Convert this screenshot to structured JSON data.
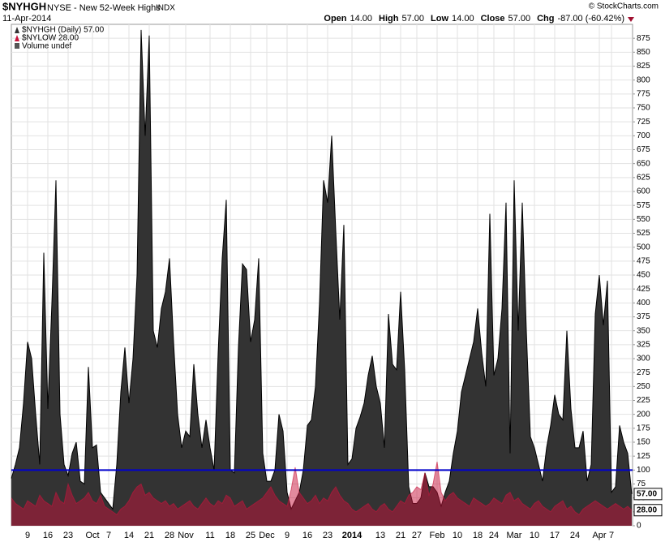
{
  "header": {
    "symbol": "$NYHGH",
    "name": "NYSE - New 52-Week Highs",
    "exchange": "INDX",
    "date": "11-Apr-2014",
    "copyright": "© StockCharts.com",
    "quote": [
      {
        "label": "Open",
        "value": "14.00"
      },
      {
        "label": "High",
        "value": "57.00"
      },
      {
        "label": "Low",
        "value": "14.00"
      },
      {
        "label": "Close",
        "value": "57.00"
      },
      {
        "label": "Chg",
        "value": "-87.00 (-60.42%)"
      }
    ]
  },
  "chart_data": {
    "type": "area",
    "ylim": [
      0,
      900
    ],
    "yticks": [
      0,
      25,
      50,
      75,
      100,
      125,
      150,
      175,
      200,
      225,
      250,
      275,
      300,
      325,
      350,
      375,
      400,
      425,
      450,
      475,
      500,
      525,
      550,
      575,
      600,
      625,
      650,
      675,
      700,
      725,
      750,
      775,
      800,
      825,
      850,
      875
    ],
    "grid": true,
    "reference_line": {
      "value": 100,
      "color": "#0000cc"
    },
    "legend_extra": "Volume undef",
    "categories": [
      null,
      null,
      null,
      null,
      "9",
      null,
      null,
      null,
      null,
      "16",
      null,
      null,
      null,
      null,
      "23",
      null,
      null,
      null,
      null,
      null,
      "Oct",
      null,
      null,
      null,
      "7",
      null,
      null,
      null,
      null,
      "14",
      null,
      null,
      null,
      null,
      "21",
      null,
      null,
      null,
      null,
      "28",
      null,
      null,
      null,
      "Nov",
      null,
      null,
      null,
      null,
      null,
      "11",
      null,
      null,
      null,
      null,
      "18",
      null,
      null,
      null,
      null,
      "25",
      null,
      null,
      null,
      "Dec",
      null,
      null,
      null,
      null,
      "9",
      null,
      null,
      null,
      null,
      "16",
      null,
      null,
      null,
      null,
      "23",
      null,
      null,
      null,
      null,
      null,
      "2014",
      null,
      null,
      null,
      null,
      null,
      null,
      "13",
      null,
      null,
      null,
      null,
      "21",
      null,
      null,
      null,
      "27",
      null,
      null,
      null,
      null,
      "Feb",
      null,
      null,
      null,
      null,
      "10",
      null,
      null,
      null,
      null,
      "18",
      null,
      null,
      null,
      "24",
      null,
      null,
      null,
      null,
      "Mar",
      null,
      null,
      null,
      null,
      "10",
      null,
      null,
      null,
      null,
      "17",
      null,
      null,
      null,
      null,
      "24",
      null,
      null,
      null,
      null,
      null,
      "Apr",
      null,
      null,
      "7",
      null,
      null,
      null,
      null,
      null
    ],
    "series": [
      {
        "name": "$NYHGH (Daily) 57.00",
        "color": "#333333",
        "last_label": "57.00",
        "values": [
          85,
          110,
          140,
          220,
          330,
          300,
          200,
          110,
          490,
          210,
          400,
          620,
          200,
          110,
          90,
          130,
          150,
          80,
          75,
          285,
          140,
          145,
          60,
          50,
          40,
          30,
          110,
          240,
          320,
          220,
          300,
          450,
          890,
          700,
          880,
          350,
          320,
          390,
          420,
          480,
          330,
          200,
          140,
          170,
          160,
          290,
          200,
          140,
          190,
          140,
          100,
          310,
          480,
          585,
          100,
          95,
          320,
          470,
          460,
          330,
          370,
          480,
          130,
          80,
          80,
          100,
          200,
          170,
          60,
          30,
          45,
          60,
          100,
          180,
          190,
          250,
          400,
          620,
          580,
          700,
          530,
          370,
          540,
          110,
          120,
          175,
          195,
          220,
          270,
          305,
          250,
          220,
          140,
          380,
          290,
          280,
          420,
          280,
          70,
          40,
          40,
          50,
          95,
          70,
          70,
          60,
          35,
          60,
          80,
          130,
          170,
          240,
          270,
          300,
          330,
          390,
          310,
          250,
          560,
          270,
          300,
          390,
          580,
          130,
          620,
          350,
          580,
          350,
          160,
          140,
          110,
          80,
          140,
          180,
          235,
          200,
          190,
          350,
          210,
          140,
          140,
          170,
          80,
          110,
          380,
          450,
          360,
          440,
          60,
          70,
          180,
          150,
          130,
          57
        ]
      },
      {
        "name": "$NYLOW 28.00",
        "color": "#c8143c",
        "last_label": "28.00",
        "values": [
          50,
          40,
          35,
          30,
          45,
          40,
          35,
          55,
          45,
          40,
          35,
          60,
          45,
          40,
          75,
          55,
          40,
          45,
          50,
          60,
          45,
          40,
          55,
          35,
          30,
          25,
          20,
          30,
          35,
          45,
          60,
          70,
          75,
          55,
          60,
          50,
          45,
          40,
          45,
          35,
          40,
          30,
          35,
          40,
          45,
          35,
          30,
          40,
          50,
          40,
          35,
          45,
          40,
          55,
          50,
          35,
          40,
          45,
          30,
          35,
          40,
          45,
          50,
          60,
          70,
          55,
          45,
          40,
          35,
          65,
          105,
          60,
          50,
          40,
          45,
          55,
          40,
          50,
          45,
          60,
          70,
          55,
          45,
          40,
          30,
          25,
          30,
          35,
          40,
          30,
          25,
          35,
          40,
          30,
          25,
          35,
          45,
          40,
          55,
          60,
          70,
          65,
          95,
          55,
          75,
          115,
          60,
          45,
          55,
          60,
          50,
          45,
          40,
          35,
          50,
          45,
          40,
          35,
          40,
          50,
          45,
          40,
          55,
          60,
          45,
          50,
          40,
          35,
          30,
          40,
          45,
          35,
          30,
          25,
          35,
          40,
          45,
          30,
          35,
          25,
          20,
          30,
          35,
          40,
          45,
          40,
          35,
          30,
          35,
          40,
          35,
          30,
          35,
          28
        ]
      }
    ]
  }
}
